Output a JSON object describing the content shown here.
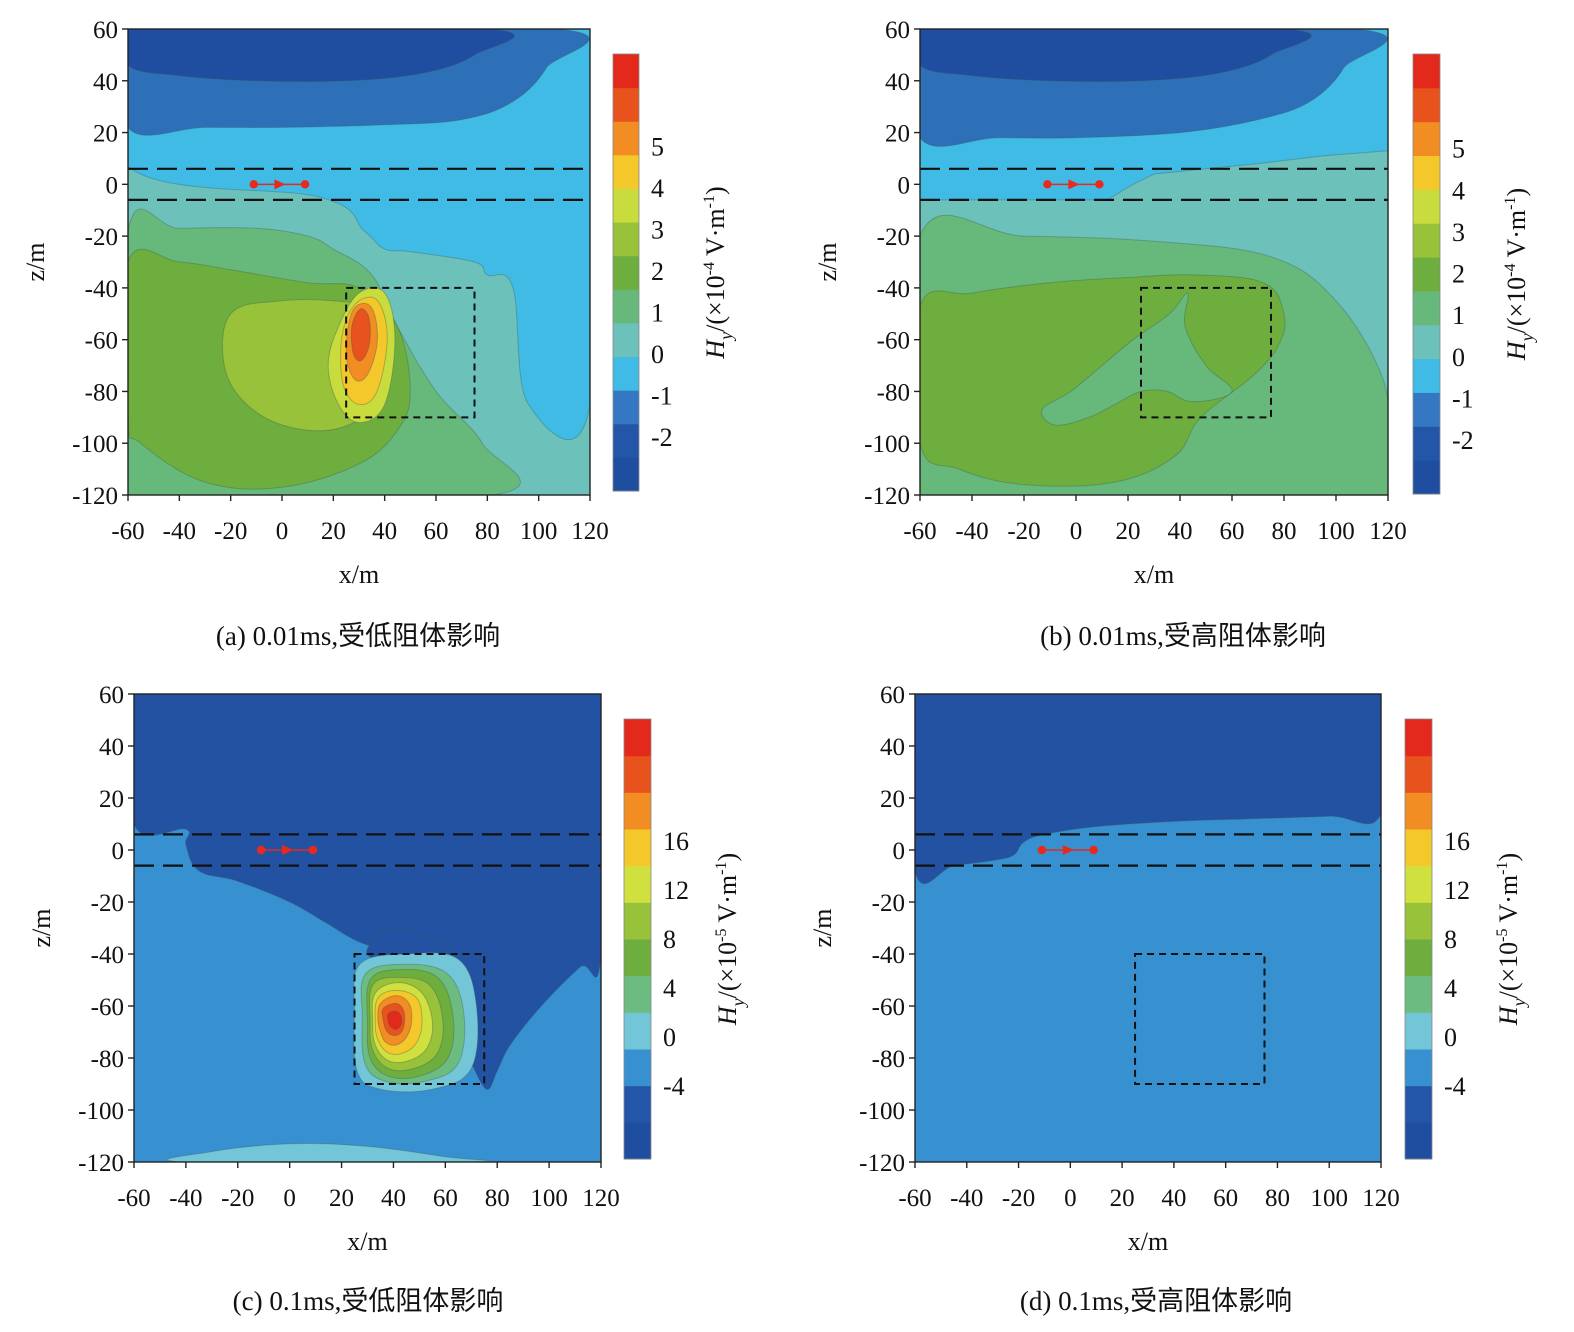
{
  "chart_data": [
    {
      "type": "heatmap",
      "id": "a",
      "caption": "(a) 0.01ms,受低阻体影响",
      "xlabel": "x/m",
      "ylabel": "z/m",
      "xlim": [
        -60,
        120
      ],
      "ylim": [
        -120,
        60
      ],
      "x_ticks": [
        "-60",
        "-40",
        "-20",
        "0",
        "20",
        "40",
        "60",
        "80",
        "100",
        "120"
      ],
      "y_ticks": [
        "60",
        "40",
        "20",
        "0",
        "-20",
        "-40",
        "-60",
        "-80",
        "-100",
        "-120"
      ],
      "colorbar": {
        "label": "Hy/(×10-4 V·m-1)",
        "label_parts": [
          "H",
          "y",
          "/(×10",
          "-4",
          " V·m",
          "-1",
          ")"
        ],
        "range": [
          -2,
          6
        ],
        "tick_labels": [
          "5",
          "4",
          "3",
          "2",
          "1",
          "0",
          "-1",
          "-2"
        ],
        "tick_values": [
          5,
          4,
          3,
          2,
          1,
          0,
          -1,
          -2
        ],
        "colors": [
          "#1f4ea0",
          "#2356a8",
          "#3478c3",
          "#3fbbe6",
          "#6cc1bb",
          "#67b97b",
          "#6dae3f",
          "#97c23a",
          "#c9dc3e",
          "#f4c82a",
          "#f28d23",
          "#e8521d",
          "#e2291b"
        ]
      },
      "background_color": "#6cc1bb",
      "contour_colors": {
        "top_low": "#1f4ea0",
        "top_mid": "#2e70b8",
        "upper": "#3fbbe6",
        "green_outer": "#67b97b",
        "green_mid": "#6dae3f",
        "green_inner": "#97c23a",
        "peak_1": "#c9dc3e",
        "peak_2": "#f4c82a",
        "peak_3": "#f28d23",
        "peak_4": "#e8521d"
      },
      "peak": {
        "x": 30,
        "z": -55,
        "value": 5
      },
      "transmitter": {
        "x1": -11,
        "x2": 9,
        "z": 0,
        "color": "#e8291c"
      },
      "anomaly_box": {
        "x1": 25,
        "x2": 75,
        "z1": -40,
        "z2": -90
      },
      "layer_lines": [
        6,
        -6
      ]
    },
    {
      "type": "heatmap",
      "id": "b",
      "caption": "(b) 0.01ms,受高阻体影响",
      "xlabel": "x/m",
      "ylabel": "z/m",
      "xlim": [
        -60,
        120
      ],
      "ylim": [
        -120,
        60
      ],
      "x_ticks": [
        "-60",
        "-40",
        "-20",
        "0",
        "20",
        "40",
        "60",
        "80",
        "100",
        "120"
      ],
      "y_ticks": [
        "60",
        "40",
        "20",
        "0",
        "-20",
        "-40",
        "-60",
        "-80",
        "-100",
        "-120"
      ],
      "colorbar": {
        "label": "Hy/(×10-4 V·m-1)",
        "label_parts": [
          "H",
          "y",
          "/(×10",
          "-4",
          " V·m",
          "-1",
          ")"
        ],
        "range": [
          -2,
          6
        ],
        "tick_labels": [
          "5",
          "4",
          "3",
          "2",
          "1",
          "0",
          "-1",
          "-2"
        ],
        "tick_values": [
          5,
          4,
          3,
          2,
          1,
          0,
          -1,
          -2
        ],
        "colors": [
          "#1f4ea0",
          "#2356a8",
          "#3478c3",
          "#3fbbe6",
          "#6cc1bb",
          "#67b97b",
          "#6dae3f",
          "#97c23a",
          "#c9dc3e",
          "#f4c82a",
          "#f28d23",
          "#e8521d",
          "#e2291b"
        ]
      },
      "background_color": "#6cc1bb",
      "contour_colors": {
        "top_low": "#1f4ea0",
        "top_mid": "#2e70b8",
        "upper": "#3fbbe6",
        "green_outer": "#67b97b",
        "green_mid": "#6dae3f"
      },
      "transmitter": {
        "x1": -11,
        "x2": 9,
        "z": 0,
        "color": "#e8291c"
      },
      "anomaly_box": {
        "x1": 25,
        "x2": 75,
        "z1": -40,
        "z2": -90
      },
      "layer_lines": [
        6,
        -6
      ]
    },
    {
      "type": "heatmap",
      "id": "c",
      "caption": "(c) 0.1ms,受低阻体影响",
      "xlabel": "x/m",
      "ylabel": "z/m",
      "xlim": [
        -60,
        120
      ],
      "ylim": [
        -120,
        60
      ],
      "x_ticks": [
        "-60",
        "-40",
        "-20",
        "0",
        "20",
        "40",
        "60",
        "80",
        "100",
        "120"
      ],
      "y_ticks": [
        "60",
        "40",
        "20",
        "0",
        "-20",
        "-40",
        "-60",
        "-80",
        "-100",
        "-120"
      ],
      "colorbar": {
        "label": "Hy/(×10-5 V·m-1)",
        "label_parts": [
          "H",
          "y",
          "/(×10",
          "-5",
          " V·m",
          "-1",
          ")"
        ],
        "range": [
          -4,
          20
        ],
        "tick_labels": [
          "16",
          "12",
          "8",
          "4",
          "0",
          "-4"
        ],
        "tick_values": [
          16,
          12,
          8,
          4,
          0,
          -4
        ],
        "colors": [
          "#1f4ea0",
          "#2356a8",
          "#3790d0",
          "#72c6d8",
          "#6cbc82",
          "#6dae3f",
          "#97c23a",
          "#cfe03f",
          "#f4c82a",
          "#f28d23",
          "#e8521d",
          "#e2291b"
        ]
      },
      "background_color": "#3790d0",
      "contour_colors": {
        "dark": "#2352a2",
        "light_bottom": "#72c6d8",
        "ring_1": "#72c6d8",
        "ring_2": "#6cbc82",
        "ring_3": "#6dae3f",
        "ring_4": "#97c23a",
        "ring_5": "#cfe03f",
        "ring_6": "#f4c82a",
        "ring_7": "#f28d23",
        "ring_8": "#e8521d",
        "ring_9": "#e2291b"
      },
      "peak": {
        "x": 40,
        "z": -65,
        "value": 18
      },
      "transmitter": {
        "x1": -11,
        "x2": 9,
        "z": 0,
        "color": "#e8291c"
      },
      "anomaly_box": {
        "x1": 25,
        "x2": 75,
        "z1": -40,
        "z2": -90
      },
      "layer_lines": [
        6,
        -6
      ]
    },
    {
      "type": "heatmap",
      "id": "d",
      "caption": "(d) 0.1ms,受高阻体影响",
      "xlabel": "x/m",
      "ylabel": "z/m",
      "xlim": [
        -60,
        120
      ],
      "ylim": [
        -120,
        60
      ],
      "x_ticks": [
        "-60",
        "-40",
        "-20",
        "0",
        "20",
        "40",
        "60",
        "80",
        "100",
        "120"
      ],
      "y_ticks": [
        "60",
        "40",
        "20",
        "0",
        "-20",
        "-40",
        "-60",
        "-80",
        "-100",
        "-120"
      ],
      "colorbar": {
        "label": "Hy/(×10-5 V·m-1)",
        "label_parts": [
          "H",
          "y",
          "/(×10",
          "-5",
          " V·m",
          "-1",
          ")"
        ],
        "range": [
          -4,
          20
        ],
        "tick_labels": [
          "16",
          "12",
          "8",
          "4",
          "0",
          "-4"
        ],
        "tick_values": [
          16,
          12,
          8,
          4,
          0,
          -4
        ],
        "colors": [
          "#1f4ea0",
          "#2356a8",
          "#3790d0",
          "#72c6d8",
          "#6cbc82",
          "#6dae3f",
          "#97c23a",
          "#cfe03f",
          "#f4c82a",
          "#f28d23",
          "#e8521d",
          "#e2291b"
        ]
      },
      "background_color": "#3790d0",
      "contour_colors": {
        "dark": "#2352a2"
      },
      "transmitter": {
        "x1": -11,
        "x2": 9,
        "z": 0,
        "color": "#e8291c"
      },
      "anomaly_box": {
        "x1": 25,
        "x2": 75,
        "z1": -40,
        "z2": -90
      },
      "layer_lines": [
        6,
        -6
      ]
    }
  ]
}
